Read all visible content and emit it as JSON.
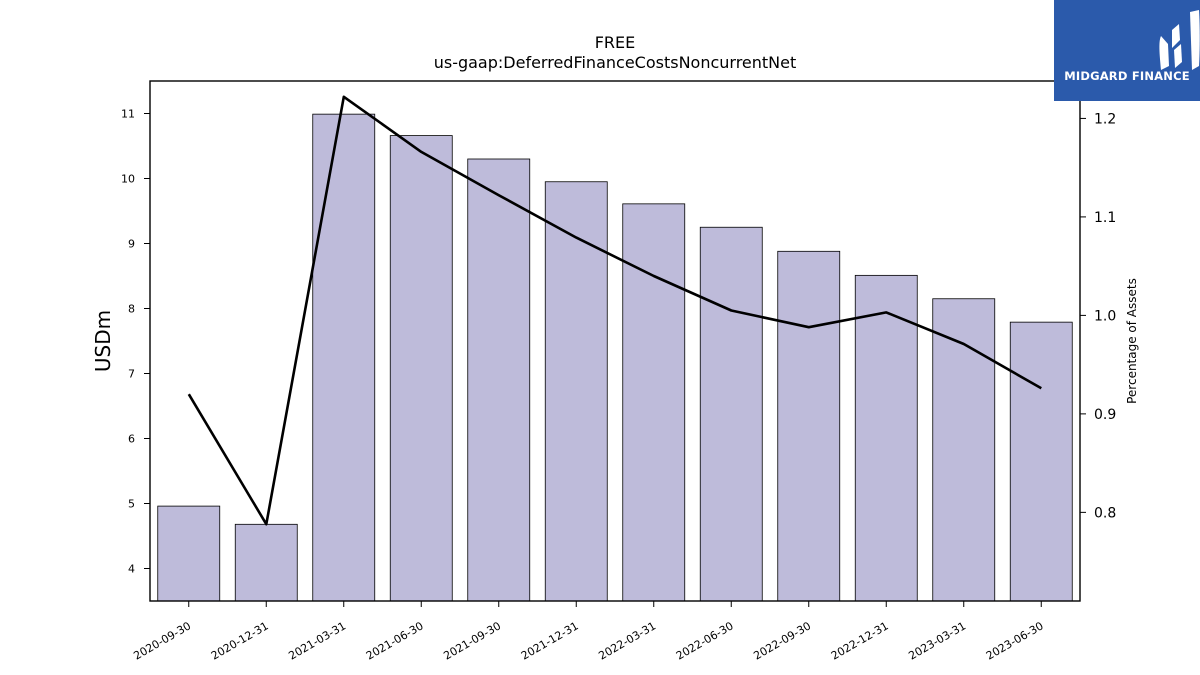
{
  "chart_data": {
    "type": "bar",
    "title": "FREE",
    "subtitle": "us-gaap:DeferredFinanceCostsNoncurrentNet",
    "ylabel": "USDm",
    "y2label": "Percentage of Assets",
    "categories": [
      "2020-09-30",
      "2020-12-31",
      "2021-03-31",
      "2021-06-30",
      "2021-09-30",
      "2021-12-31",
      "2022-03-31",
      "2022-06-30",
      "2022-09-30",
      "2022-12-31",
      "2023-03-31",
      "2023-06-30"
    ],
    "series": [
      {
        "type": "bar",
        "axis": "left",
        "values": [
          4.96,
          4.68,
          10.99,
          10.66,
          10.3,
          9.95,
          9.61,
          9.25,
          8.88,
          8.51,
          8.15,
          7.79
        ]
      },
      {
        "type": "line",
        "axis": "right",
        "values": [
          0.92,
          0.788,
          1.222,
          1.166,
          1.122,
          1.079,
          1.04,
          1.005,
          0.988,
          1.003,
          0.971,
          0.926
        ]
      }
    ],
    "ylim": [
      3.5,
      11.5
    ],
    "y2lim": [
      0.71,
      1.238
    ],
    "yticks": [
      4,
      5,
      6,
      7,
      8,
      9,
      10,
      11
    ],
    "y2ticks": [
      0.8,
      0.9,
      1.0,
      1.1,
      1.2
    ],
    "y2ticklabels": [
      "0.8",
      "0.9",
      "1.0",
      "1.1",
      "1.2"
    ],
    "grid": false,
    "bar_color": "#bebbda",
    "line_color": "#000000"
  },
  "logo": {
    "text": "MIDGARD FINANCE",
    "background": "#2b5aab"
  }
}
